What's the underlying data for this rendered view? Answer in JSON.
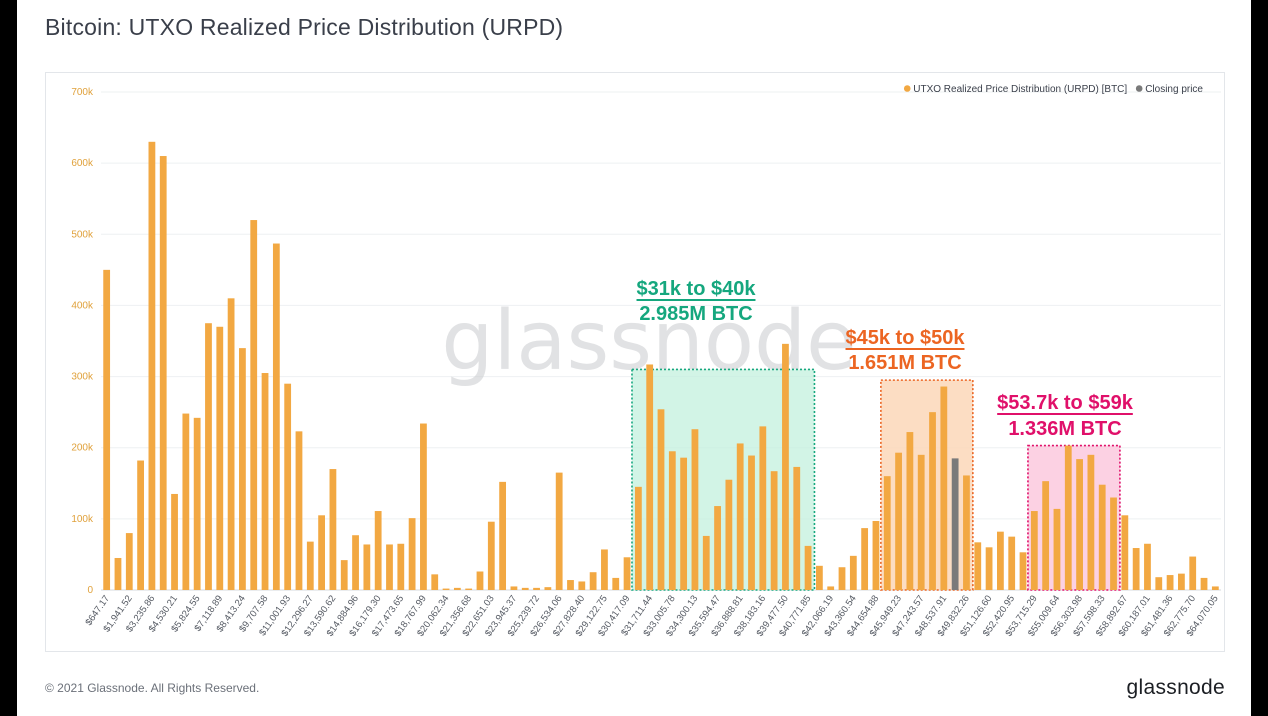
{
  "title": "Bitcoin: UTXO Realized Price Distribution (URPD)",
  "footer": {
    "copyright": "© 2021 Glassnode. All Rights Reserved.",
    "logo": "glassnode"
  },
  "watermark": "glassnode",
  "colors": {
    "bar": "#f2a842",
    "closing": "#7a7a7a",
    "axis_text": "#e0a13b",
    "green": "#15a77e",
    "orange": "#ec6522",
    "pink": "#e0106a"
  },
  "chart_data": {
    "type": "bar",
    "legend": [
      {
        "label": "UTXO Realized Price Distribution (URPD) [BTC]",
        "color": "#f2a842"
      },
      {
        "label": "Closing price",
        "color": "#7a7a7a"
      }
    ],
    "legend_position": "top-right",
    "y_ticks": [
      "0",
      "100k",
      "200k",
      "300k",
      "400k",
      "500k",
      "600k",
      "700k"
    ],
    "ylim": [
      0,
      700000
    ],
    "grid": true,
    "x_tick_labels": [
      "$647.17",
      "$1,941.52",
      "$3,235.86",
      "$4,530.21",
      "$5,824.55",
      "$7,118.89",
      "$8,413.24",
      "$9,707.58",
      "$11,001.93",
      "$12,296.27",
      "$13,590.62",
      "$14,884.96",
      "$16,179.30",
      "$17,473.65",
      "$18,767.99",
      "$20,062.34",
      "$21,356.68",
      "$22,651.03",
      "$23,945.37",
      "$25,239.72",
      "$26,534.06",
      "$27,828.40",
      "$29,122.75",
      "$30,417.09",
      "$31,711.44",
      "$33,005.78",
      "$34,300.13",
      "$35,594.47",
      "$36,888.81",
      "$38,183.16",
      "$39,477.50",
      "$40,771.85",
      "$42,066.19",
      "$43,360.54",
      "$44,654.88",
      "$45,949.23",
      "$47,243.57",
      "$48,537.91",
      "$49,832.26",
      "$51,126.60",
      "$52,420.95",
      "$53,715.29",
      "$55,009.64",
      "$56,303.98",
      "$57,598.33",
      "$58,892.67",
      "$60,187.01",
      "$61,481.36",
      "$62,775.70",
      "$64,070.05"
    ],
    "values": [
      450000,
      45000,
      80000,
      182000,
      630000,
      610000,
      135000,
      248000,
      242000,
      375000,
      370000,
      410000,
      340000,
      520000,
      305000,
      487000,
      290000,
      223000,
      68000,
      105000,
      170000,
      42000,
      77000,
      64000,
      111000,
      64000,
      65000,
      101000,
      234000,
      22000,
      2000,
      3000,
      2000,
      26000,
      96000,
      152000,
      5000,
      3000,
      3000,
      4000,
      165000,
      14000,
      12000,
      25000,
      57000,
      17000,
      46000,
      145000,
      317000,
      254000,
      195000,
      186000,
      226000,
      76000,
      118000,
      155000,
      206000,
      189000,
      230000,
      167000,
      346000,
      173000,
      62000,
      34000,
      5000,
      32000,
      48000,
      87000,
      97000,
      160000,
      193000,
      222000,
      190000,
      250000,
      286000,
      185000,
      161000,
      67000,
      60000,
      82000,
      75000,
      53000,
      111000,
      153000,
      114000,
      203000,
      184000,
      190000,
      148000,
      130000,
      105000,
      59000,
      65000,
      18000,
      21000,
      23000,
      47000,
      17000,
      5000
    ],
    "closing_price_bin_index": 75,
    "annotations": [
      {
        "lines": [
          "$31k to $40k",
          "2.985M BTC"
        ],
        "color": "#15a77e",
        "range": [
          "$31,711.44",
          "$40,771.85"
        ]
      },
      {
        "lines": [
          "$45k to $50k",
          "1.651M BTC"
        ],
        "color": "#ec6522",
        "range": [
          "$45,949.23",
          "$49,832.26"
        ]
      },
      {
        "lines": [
          "$53.7k to $59k",
          "1.336M BTC"
        ],
        "color": "#e0106a",
        "range": [
          "$53,715.29",
          "$58,892.67"
        ]
      }
    ]
  }
}
